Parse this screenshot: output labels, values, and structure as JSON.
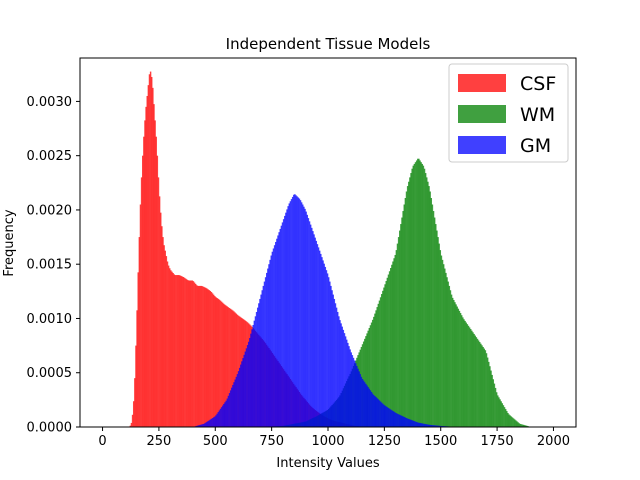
{
  "chart_data": {
    "type": "histogram",
    "title": "Independent Tissue Models",
    "xlabel": "Intensity Values",
    "ylabel": "Frequency",
    "xlim": [
      -100,
      2100
    ],
    "ylim": [
      0,
      0.0034
    ],
    "x_ticks": [
      0,
      250,
      500,
      750,
      1000,
      1250,
      1500,
      1750,
      2000
    ],
    "x_tick_labels": [
      "0",
      "250",
      "500",
      "750",
      "1000",
      "1250",
      "1500",
      "1750",
      "2000"
    ],
    "y_ticks": [
      0,
      0.0005,
      0.001,
      0.0015,
      0.002,
      0.0025,
      0.003
    ],
    "y_tick_labels": [
      "0.0000",
      "0.0005",
      "0.0010",
      "0.0015",
      "0.0020",
      "0.0025",
      "0.0030"
    ],
    "legend_position": "top-right",
    "series": [
      {
        "name": "CSF",
        "color": "#ff0000",
        "alpha": 0.75,
        "x": [
          120,
          130,
          140,
          150,
          160,
          170,
          180,
          190,
          200,
          210,
          220,
          230,
          240,
          250,
          260,
          270,
          280,
          290,
          300,
          320,
          340,
          360,
          380,
          400,
          420,
          440,
          460,
          480,
          500,
          520,
          540,
          560,
          580,
          600,
          620,
          640,
          660,
          680,
          700,
          720,
          740,
          760,
          780,
          800,
          820,
          840,
          860,
          880,
          900,
          920,
          940,
          960,
          980,
          1000,
          1020,
          1040,
          1060,
          1080,
          1100,
          1120,
          1140,
          1160,
          1180
        ],
        "y": [
          0,
          5e-05,
          0.0003,
          0.0009,
          0.0016,
          0.0022,
          0.0026,
          0.0029,
          0.0031,
          0.0033,
          0.0032,
          0.0029,
          0.0026,
          0.0022,
          0.0019,
          0.0017,
          0.0016,
          0.0015,
          0.00145,
          0.0014,
          0.0014,
          0.00138,
          0.00135,
          0.00135,
          0.0013,
          0.0013,
          0.00128,
          0.00125,
          0.0012,
          0.00117,
          0.00113,
          0.0011,
          0.00107,
          0.00103,
          0.001,
          0.00097,
          0.00093,
          0.00088,
          0.00083,
          0.00078,
          0.00072,
          0.00066,
          0.0006,
          0.00054,
          0.00048,
          0.00042,
          0.00036,
          0.0003,
          0.00025,
          0.0002,
          0.00016,
          0.00013,
          0.0001,
          8e-05,
          6e-05,
          5e-05,
          4e-05,
          3e-05,
          2e-05,
          1e-05,
          5e-06,
          2e-06,
          0
        ]
      },
      {
        "name": "WM",
        "color": "#008000",
        "alpha": 0.75,
        "x": [
          700,
          750,
          800,
          850,
          900,
          950,
          1000,
          1050,
          1100,
          1150,
          1200,
          1250,
          1300,
          1325,
          1350,
          1375,
          1400,
          1425,
          1450,
          1475,
          1500,
          1550,
          1600,
          1650,
          1700,
          1725,
          1750,
          1800,
          1850,
          1900
        ],
        "y": [
          0,
          5e-06,
          1e-05,
          3e-05,
          5e-05,
          0.0001,
          0.00016,
          0.00028,
          0.0005,
          0.00075,
          0.001,
          0.0013,
          0.0016,
          0.0019,
          0.0022,
          0.0024,
          0.00248,
          0.0024,
          0.0022,
          0.0019,
          0.0016,
          0.0012,
          0.001,
          0.00085,
          0.0007,
          0.0005,
          0.0003,
          0.00012,
          3e-05,
          0
        ]
      },
      {
        "name": "GM",
        "color": "#0000ff",
        "alpha": 0.75,
        "x": [
          400,
          450,
          500,
          550,
          600,
          650,
          700,
          750,
          800,
          825,
          850,
          875,
          900,
          950,
          1000,
          1050,
          1100,
          1150,
          1200,
          1250,
          1300,
          1350,
          1400,
          1450,
          1500,
          1550,
          1600
        ],
        "y": [
          0,
          3e-05,
          0.0001,
          0.00025,
          0.0005,
          0.0008,
          0.0012,
          0.0016,
          0.0019,
          0.00205,
          0.00215,
          0.0021,
          0.002,
          0.0017,
          0.0014,
          0.001,
          0.0007,
          0.00045,
          0.0003,
          0.0002,
          0.00013,
          8e-05,
          4e-05,
          2e-05,
          1e-05,
          3e-06,
          0
        ]
      }
    ]
  }
}
